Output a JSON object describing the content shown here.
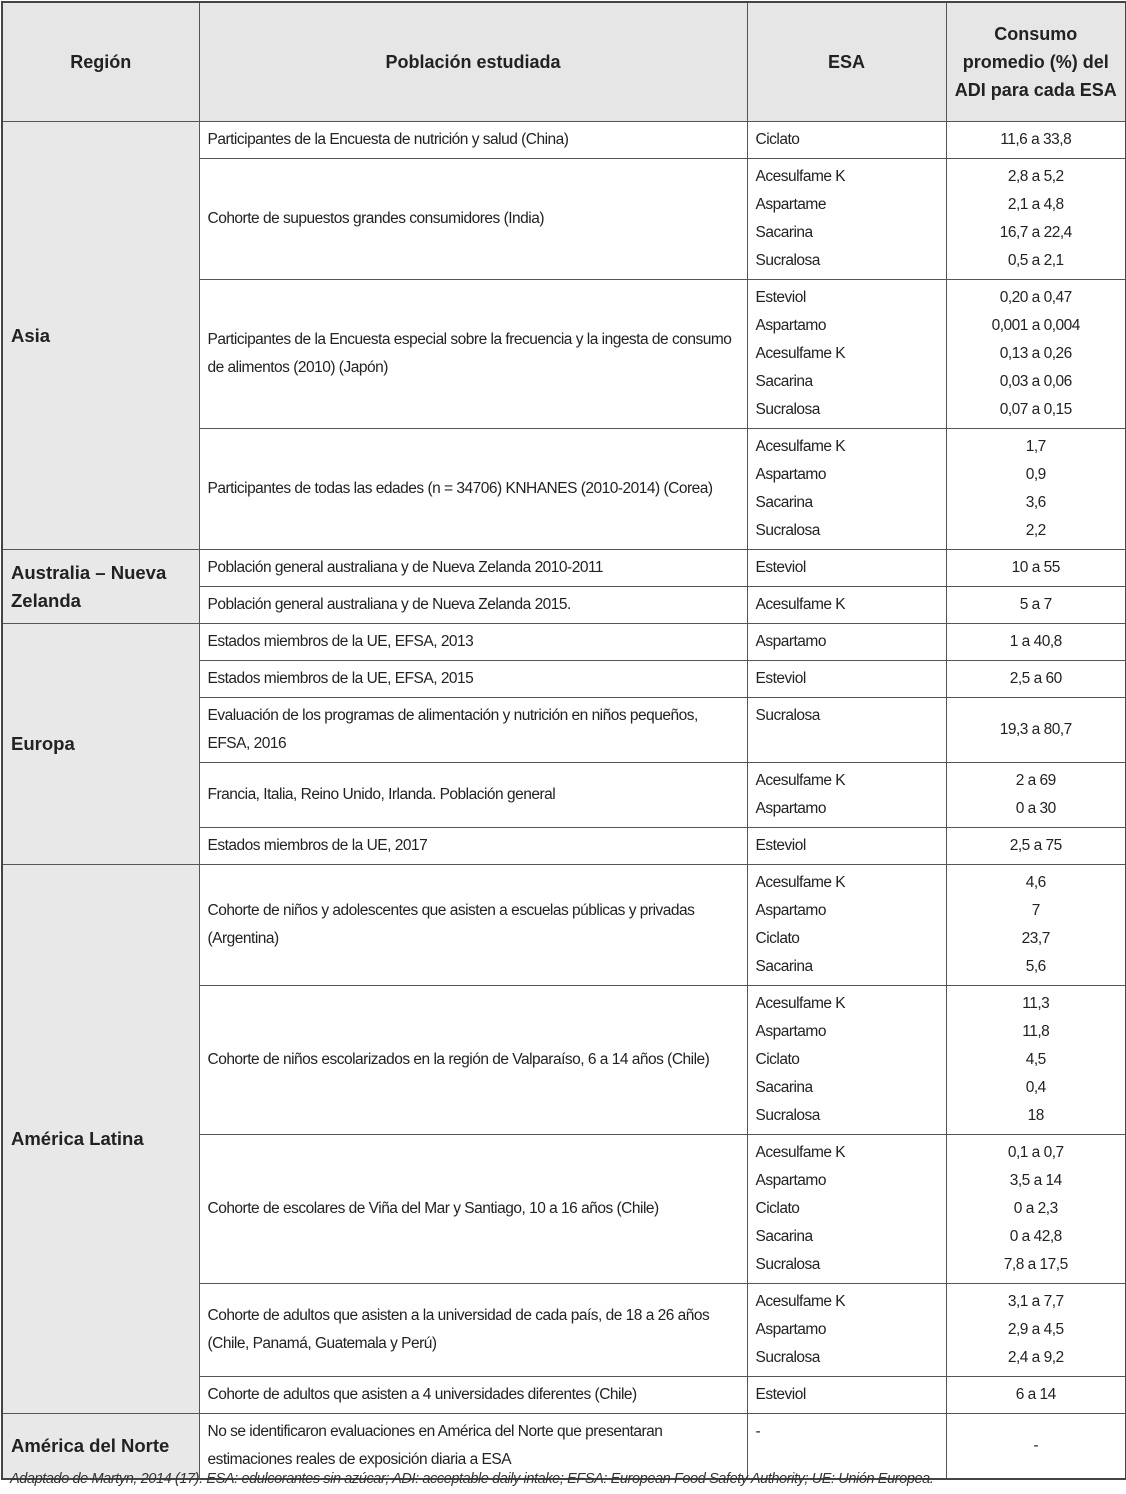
{
  "header": {
    "columns": [
      "Región",
      "Población estudiada",
      "ESA",
      "Consumo promedio (%) del ADI para cada ESA"
    ]
  },
  "regions": [
    {
      "name": "Asia",
      "rows": [
        {
          "population": "Participantes de la Encuesta de nutrición y salud (China)",
          "esa": [
            "Ciclato"
          ],
          "consumption": [
            "11,6 a 33,8"
          ]
        },
        {
          "population": "Cohorte de supuestos grandes consumidores (India)",
          "esa": [
            "Acesulfame K",
            "Aspartame",
            "Sacarina",
            "Sucralosa"
          ],
          "consumption": [
            "2,8 a 5,2",
            "2,1 a 4,8",
            "16,7 a 22,4",
            "0,5 a 2,1"
          ]
        },
        {
          "population": "Participantes de la Encuesta especial sobre la frecuencia y la ingesta de consumo de alimentos (2010) (Japón)",
          "esa": [
            "Esteviol",
            "Aspartamo",
            "Acesulfame K",
            "Sacarina",
            "Sucralosa"
          ],
          "consumption": [
            "0,20 a 0,47",
            "0,001 a 0,004",
            "0,13 a 0,26",
            "0,03 a 0,06",
            "0,07 a 0,15"
          ]
        },
        {
          "population": "Participantes de todas las edades (n = 34706) KNHANES (2010-2014) (Corea)",
          "esa": [
            "Acesulfame K",
            "Aspartamo",
            "Sacarina",
            "Sucralosa"
          ],
          "consumption": [
            "1,7",
            "0,9",
            "3,6",
            "2,2"
          ]
        }
      ]
    },
    {
      "name": "Australia – Nueva Zelanda",
      "rows": [
        {
          "population": "Población general australiana y de Nueva Zelanda 2010-2011",
          "esa": [
            "Esteviol"
          ],
          "consumption": [
            "10 a 55"
          ]
        },
        {
          "population": "Población general australiana y de Nueva Zelanda 2015.",
          "esa": [
            "Acesulfame K"
          ],
          "consumption": [
            "5 a 7"
          ]
        }
      ]
    },
    {
      "name": "Europa",
      "rows": [
        {
          "population": "Estados miembros de la UE, EFSA, 2013",
          "esa": [
            "Aspartamo"
          ],
          "consumption": [
            "1 a 40,8"
          ]
        },
        {
          "population": "Estados miembros de la UE, EFSA, 2015",
          "esa": [
            "Esteviol"
          ],
          "consumption": [
            "2,5 a 60"
          ]
        },
        {
          "population": "Evaluación de los programas de alimentación y nutrición en niños pequeños, EFSA, 2016",
          "esa": [
            "Sucralosa"
          ],
          "consumption": [
            "19,3 a 80,7"
          ]
        },
        {
          "population": "Francia, Italia, Reino Unido, Irlanda. Población general",
          "esa": [
            "Acesulfame K",
            "Aspartamo"
          ],
          "consumption": [
            "2 a 69",
            "0 a 30"
          ]
        },
        {
          "population": "Estados miembros de la UE, 2017",
          "esa": [
            "Esteviol"
          ],
          "consumption": [
            "2,5 a 75"
          ]
        }
      ]
    },
    {
      "name": "América Latina",
      "rows": [
        {
          "population": "Cohorte de niños y adolescentes que asisten a escuelas públicas y privadas (Argentina)",
          "esa": [
            "Acesulfame K",
            "Aspartamo",
            "Ciclato",
            "Sacarina"
          ],
          "consumption": [
            "4,6",
            "7",
            "23,7",
            "5,6"
          ]
        },
        {
          "population": "Cohorte de niños escolarizados en la región de Valparaíso, 6 a 14 años (Chile)",
          "esa": [
            "Acesulfame K",
            "Aspartamo",
            "Ciclato",
            "Sacarina",
            "Sucralosa"
          ],
          "consumption": [
            "11,3",
            "11,8",
            "4,5",
            "0,4",
            "18"
          ]
        },
        {
          "population": "Cohorte de escolares de Viña del Mar y Santiago, 10 a 16 años (Chile)",
          "esa": [
            "Acesulfame K",
            "Aspartamo",
            "Ciclato",
            "Sacarina",
            "Sucralosa"
          ],
          "consumption": [
            "0,1 a 0,7",
            "3,5 a 14",
            "0 a 2,3",
            "0 a 42,8",
            "7,8 a 17,5"
          ]
        },
        {
          "population": "Cohorte de adultos que asisten a la universidad de cada país, de 18 a 26 años (Chile, Panamá, Guatemala y Perú)",
          "esa": [
            "Acesulfame K",
            "Aspartamo",
            "Sucralosa"
          ],
          "consumption": [
            "3,1 a 7,7",
            "2,9 a 4,5",
            "2,4 a 9,2"
          ]
        },
        {
          "population": "Cohorte de adultos que asisten a 4 universidades diferentes (Chile)",
          "esa": [
            "Esteviol"
          ],
          "consumption": [
            "6 a 14"
          ]
        }
      ]
    },
    {
      "name": "América del Norte",
      "rows": [
        {
          "population": "No se identificaron evaluaciones en América del Norte que presentaran estimaciones reales de exposición diaria a ESA",
          "esa": [
            "-"
          ],
          "consumption": [
            "-"
          ]
        }
      ]
    }
  ],
  "footnote": "Adaptado de Martyn, 2014 (17).  ESA: edulcorantes sin azúcar; ADI: acceptable daily intake; EFSA: European Food Safety Authority; UE: Unión Europea."
}
